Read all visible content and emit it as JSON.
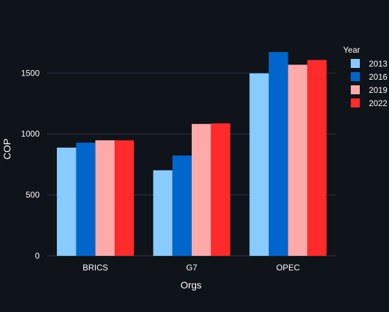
{
  "chart_data": {
    "type": "bar",
    "categories": [
      "BRICS",
      "G7",
      "OPEC"
    ],
    "series": [
      {
        "name": "2013",
        "values": [
          888,
          702,
          1497
        ],
        "color": "#88ccff"
      },
      {
        "name": "2016",
        "values": [
          928,
          823,
          1672
        ],
        "color": "#0066cc"
      },
      {
        "name": "2019",
        "values": [
          948,
          1082,
          1568
        ],
        "color": "#ffaaaa"
      },
      {
        "name": "2022",
        "values": [
          948,
          1087,
          1607
        ],
        "color": "#ff2a2a"
      }
    ],
    "xlabel": "Orgs",
    "ylabel": "COP",
    "ylim": [
      0,
      1900
    ],
    "yticks": [
      0,
      500,
      1000,
      1500
    ],
    "ytick_labels": [
      "0",
      "500",
      "1000",
      "1500"
    ],
    "legend_title": "Year",
    "legend_position": "right",
    "grid": true,
    "colors": {
      "background": "#0f131a",
      "grid": "#2f3542",
      "text": "#ffffff"
    }
  }
}
